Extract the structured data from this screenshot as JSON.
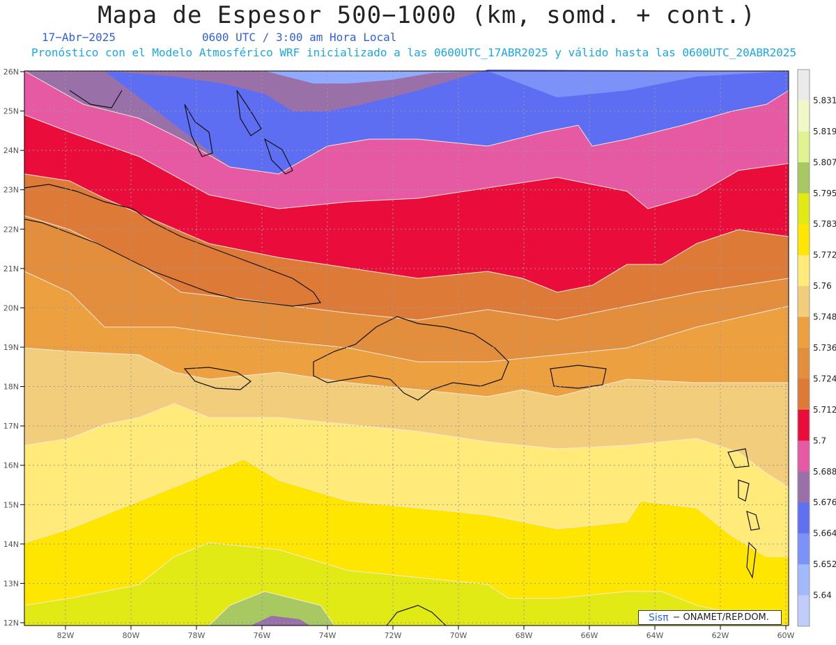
{
  "header": {
    "title": "Mapa de Espesor 500−1000 (km, somd. + cont.)",
    "date": "17−Abr−2025",
    "time": "0600 UTC / 3:00 am Hora Local",
    "description": "Pronóstico con el Modelo Atmosférico WRF inicializado a las 0600UTC_17ABR2025 y válido hasta las  0600UTC_20ABR2025"
  },
  "axes": {
    "lat_labels": [
      "26N",
      "25N",
      "24N",
      "23N",
      "22N",
      "21N",
      "20N",
      "19N",
      "18N",
      "17N",
      "16N",
      "15N",
      "14N",
      "13N",
      "12N"
    ],
    "lon_labels": [
      "82W",
      "80W",
      "78W",
      "76W",
      "74W",
      "72W",
      "70W",
      "68W",
      "66W",
      "64W",
      "62W",
      "60W"
    ]
  },
  "colorbar": {
    "labels": [
      "5.831",
      "5.819",
      "5.807",
      "5.795",
      "5.783",
      "5.772",
      "5.76",
      "5.748",
      "5.736",
      "5.724",
      "5.712",
      "5.7",
      "5.688",
      "5.676",
      "5.664",
      "5.652",
      "5.64"
    ],
    "colors": [
      "#ebebeb",
      "#f2f7c8",
      "#e0f291",
      "#a8c862",
      "#e2ea16",
      "#ffe600",
      "#ffea7a",
      "#f2cd7c",
      "#eca040",
      "#e38e3c",
      "#dd7a38",
      "#ea0d3c",
      "#e659a3",
      "#9a70a8",
      "#6070f0",
      "#7d92f8",
      "#a4b8fc",
      "#c0ccfc"
    ]
  },
  "contour_fills": {
    "band_colors": [
      "#9a70a8",
      "#5e6ef2",
      "#7d92f8",
      "#90aaff",
      "#9a70a8",
      "#e659a3",
      "#ea0d3c",
      "#dd7a38",
      "#e38e3c",
      "#eca040",
      "#f2cd7c",
      "#ffea7a",
      "#ffe600",
      "#e2ea16",
      "#a8c862",
      "#9a70a8"
    ],
    "contour_color": "#f6e8d8"
  },
  "credit": {
    "logo": "Sisπ",
    "text": "− ONAMET/REP.DOM."
  }
}
